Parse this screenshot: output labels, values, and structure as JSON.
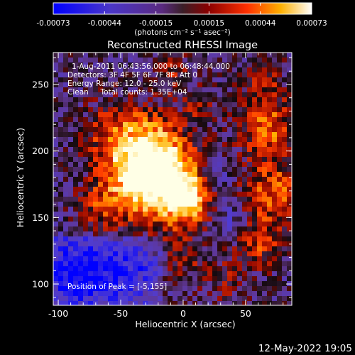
{
  "colorbar": {
    "tick_labels": [
      "-0.00073",
      "-0.00044",
      "-0.00015",
      "0.00015",
      "0.00044",
      "0.00073"
    ],
    "unit_label": "(photons cm⁻² s⁻¹ asec⁻²)",
    "scale_range": [
      -0.00073,
      0.00073
    ]
  },
  "image": {
    "title": "Reconstructed RHESSI Image",
    "info_lines": [
      "1-Aug-2011 06:43:56.000 to 06:48:44.000",
      "Detectors: 3F 4F 5F 6F 7F 8F, Att 0",
      "Energy Range: 12.0 - 25.0 keV",
      "Clean     Total counts: 1.35E+04"
    ],
    "peak_label": "Position of Peak = [-5,155]",
    "x_axis": {
      "label": "Heliocentric X (arcsec)",
      "ticks": [
        -100,
        -50,
        0,
        50
      ],
      "range": [
        -104,
        87
      ]
    },
    "y_axis": {
      "label": "Heliocentric Y (arcsec)",
      "ticks": [
        100,
        150,
        200,
        250
      ],
      "range": [
        84,
        274
      ]
    }
  },
  "footer": {
    "timestamp": "12-May-2022 19:05"
  },
  "colors": {
    "background": "#000000",
    "frame": "#ffffff"
  }
}
